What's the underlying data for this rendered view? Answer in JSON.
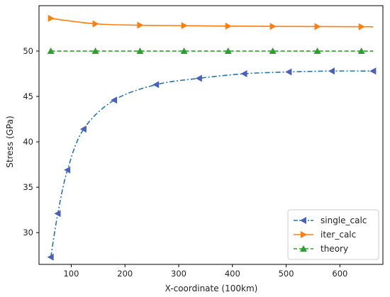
{
  "chart_data": {
    "type": "line",
    "xlabel": "X-coordinate (100km)",
    "ylabel": "Stress (GPa)",
    "xlim": [
      40,
      680
    ],
    "ylim": [
      26.5,
      55
    ],
    "x_ticks": [
      100,
      200,
      300,
      400,
      500,
      600
    ],
    "y_ticks": [
      30,
      35,
      40,
      45,
      50
    ],
    "grid": false,
    "legend_position": "lower-right",
    "series": [
      {
        "name": "single_calc",
        "color": "#1f77b4",
        "marker_color": "#4b5fbf",
        "linestyle": "dashdot",
        "marker": "triangle-left",
        "x": [
          62,
          75,
          93,
          123,
          180,
          258,
          338,
          422,
          505,
          585,
          662
        ],
        "y": [
          27.3,
          32.1,
          36.9,
          41.4,
          44.6,
          46.3,
          47.0,
          47.5,
          47.7,
          47.8,
          47.8
        ]
      },
      {
        "name": "iter_calc",
        "color": "#ff7f0e",
        "marker_color": "#ff7f0e",
        "linestyle": "solid",
        "marker": "triangle-right",
        "x": [
          62,
          145,
          228,
          310,
          392,
          475,
          558,
          640,
          662
        ],
        "y": [
          53.6,
          53.0,
          52.85,
          52.8,
          52.75,
          52.72,
          52.7,
          52.68,
          52.67
        ],
        "marker_x": [
          62,
          145,
          228,
          310,
          392,
          475,
          558,
          640
        ],
        "marker_y": [
          53.6,
          53.0,
          52.85,
          52.8,
          52.75,
          52.72,
          52.7,
          52.68
        ]
      },
      {
        "name": "theory",
        "color": "#2ca02c",
        "marker_color": "#2ca02c",
        "linestyle": "dashed",
        "marker": "triangle-up",
        "x": [
          62,
          145,
          228,
          310,
          392,
          475,
          558,
          640,
          662
        ],
        "y": [
          50,
          50,
          50,
          50,
          50,
          50,
          50,
          50,
          50
        ],
        "marker_x": [
          62,
          145,
          228,
          310,
          392,
          475,
          558,
          640
        ],
        "marker_y": [
          50,
          50,
          50,
          50,
          50,
          50,
          50,
          50
        ]
      }
    ]
  }
}
